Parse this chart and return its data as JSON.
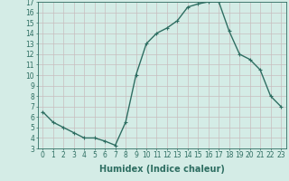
{
  "x": [
    0,
    1,
    2,
    3,
    4,
    5,
    6,
    7,
    8,
    9,
    10,
    11,
    12,
    13,
    14,
    15,
    16,
    17,
    18,
    19,
    20,
    21,
    22,
    23
  ],
  "y": [
    6.5,
    5.5,
    5.0,
    4.5,
    4.0,
    4.0,
    3.7,
    3.3,
    5.5,
    10.0,
    13.0,
    14.0,
    14.5,
    15.2,
    16.5,
    16.8,
    17.0,
    17.0,
    14.2,
    12.0,
    11.5,
    10.5,
    8.0,
    7.0
  ],
  "line_color": "#2e6e62",
  "marker": "+",
  "marker_size": 3,
  "bg_color": "#d4ece6",
  "grid_color": "#c8bebe",
  "xlabel": "Humidex (Indice chaleur)",
  "xlabel_fontsize": 7,
  "xlim": [
    -0.5,
    23.5
  ],
  "ylim": [
    3,
    17
  ],
  "yticks": [
    3,
    4,
    5,
    6,
    7,
    8,
    9,
    10,
    11,
    12,
    13,
    14,
    15,
    16,
    17
  ],
  "xticks": [
    0,
    1,
    2,
    3,
    4,
    5,
    6,
    7,
    8,
    9,
    10,
    11,
    12,
    13,
    14,
    15,
    16,
    17,
    18,
    19,
    20,
    21,
    22,
    23
  ],
  "tick_fontsize": 5.5,
  "axis_color": "#2e6e62",
  "linewidth": 1.0,
  "markeredgewidth": 0.8
}
